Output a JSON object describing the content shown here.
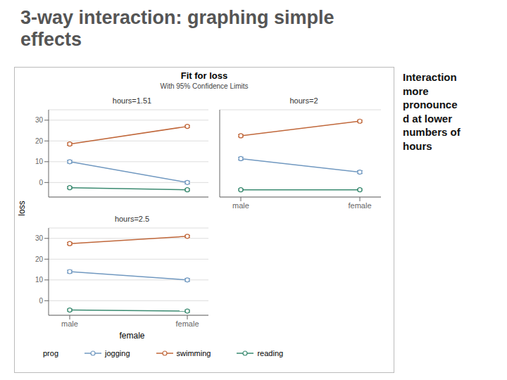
{
  "title": "3-way interaction: graphing simple\neffects",
  "chart_title": "Fit for loss",
  "subtitle": "With 95% Confidence Limits",
  "ylabel": "loss",
  "annotation": "Interaction\nmore\npronounce\nd at lower\nnumbers of\nhours",
  "legend": "bottom",
  "legend_title": "prog",
  "chart_data": [
    {
      "type": "line",
      "title": "hours=1.51",
      "categories": [
        "male",
        "female"
      ],
      "series": [
        {
          "name": "jogging",
          "color": "#7098c0",
          "marker": "circle",
          "values": [
            10,
            0
          ],
          "error": [
            0.7,
            0.7
          ]
        },
        {
          "name": "swimming",
          "color": "#c0673a",
          "marker": "circle",
          "values": [
            18.5,
            27
          ],
          "error": [
            0.6,
            0.5
          ]
        },
        {
          "name": "reading",
          "color": "#3a8a70",
          "marker": "circle",
          "values": [
            -2.5,
            -3.5
          ],
          "error": [
            0.5,
            0.5
          ]
        }
      ],
      "ylim": [
        -7,
        35
      ],
      "yticks": [
        0,
        10,
        20,
        30
      ],
      "grid": true,
      "tick_labels": "y"
    },
    {
      "type": "line",
      "title": "hours=2",
      "categories": [
        "male",
        "female"
      ],
      "series": [
        {
          "name": "jogging",
          "color": "#7098c0",
          "marker": "circle",
          "values": [
            11.5,
            5
          ],
          "error": [
            0.7,
            0.7
          ]
        },
        {
          "name": "swimming",
          "color": "#c0673a",
          "marker": "circle",
          "values": [
            22.5,
            29.5
          ],
          "error": [
            0.6,
            0.5
          ]
        },
        {
          "name": "reading",
          "color": "#3a8a70",
          "marker": "circle",
          "values": [
            -3.5,
            -3.5
          ],
          "error": [
            0.4,
            0.4
          ]
        }
      ],
      "ylim": [
        -7,
        35
      ],
      "yticks": [
        0,
        10,
        20,
        30
      ],
      "grid": true,
      "tick_labels": "x"
    },
    {
      "type": "line",
      "title": "hours=2.5",
      "xlabel": "female",
      "categories": [
        "male",
        "female"
      ],
      "series": [
        {
          "name": "jogging",
          "color": "#7098c0",
          "marker": "circle",
          "values": [
            14,
            10
          ],
          "error": [
            0.7,
            0.7
          ]
        },
        {
          "name": "swimming",
          "color": "#c0673a",
          "marker": "circle",
          "values": [
            27.5,
            31
          ],
          "error": [
            0.6,
            0.5
          ]
        },
        {
          "name": "reading",
          "color": "#3a8a70",
          "marker": "circle",
          "values": [
            -4.5,
            -5
          ],
          "error": [
            0.5,
            0.5
          ]
        }
      ],
      "ylim": [
        -7,
        35
      ],
      "yticks": [
        0,
        10,
        20,
        30
      ],
      "grid": true
    }
  ]
}
